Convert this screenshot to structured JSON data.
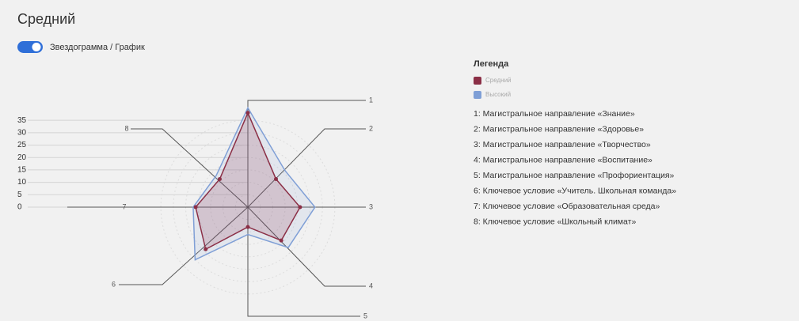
{
  "header": {
    "title": "Средний",
    "toggle_label": "Звездограмма / График"
  },
  "chart_data": {
    "type": "radar",
    "legend_title": "Легенда",
    "categories": [
      "1",
      "2",
      "3",
      "4",
      "5",
      "6",
      "7",
      "8"
    ],
    "category_descriptions": [
      "1: Магистральное направление «Знание»",
      "2: Магистральное направление «Здоровье»",
      "3: Магистральное направление «Творчество»",
      "4: Магистральное направление «Воспитание»",
      "5: Магистральное направление «Профориентация»",
      "6: Ключевое условие «Учитель. Школьная команда»",
      "7: Ключевое условие «Образовательная среда»",
      "8: Ключевое условие «Школьный климат»"
    ],
    "series": [
      {
        "name": "Средний",
        "color": "#8b2f46",
        "values": [
          38,
          16,
          21,
          19,
          8,
          24,
          21,
          16
        ]
      },
      {
        "name": "Высокий",
        "color": "#7f9fd6",
        "values": [
          40,
          21,
          27,
          23,
          11,
          30,
          22,
          18
        ]
      }
    ],
    "rlim": [
      0,
      43
    ],
    "rticks": [
      0,
      5,
      10,
      15,
      20,
      25,
      30,
      35
    ]
  }
}
